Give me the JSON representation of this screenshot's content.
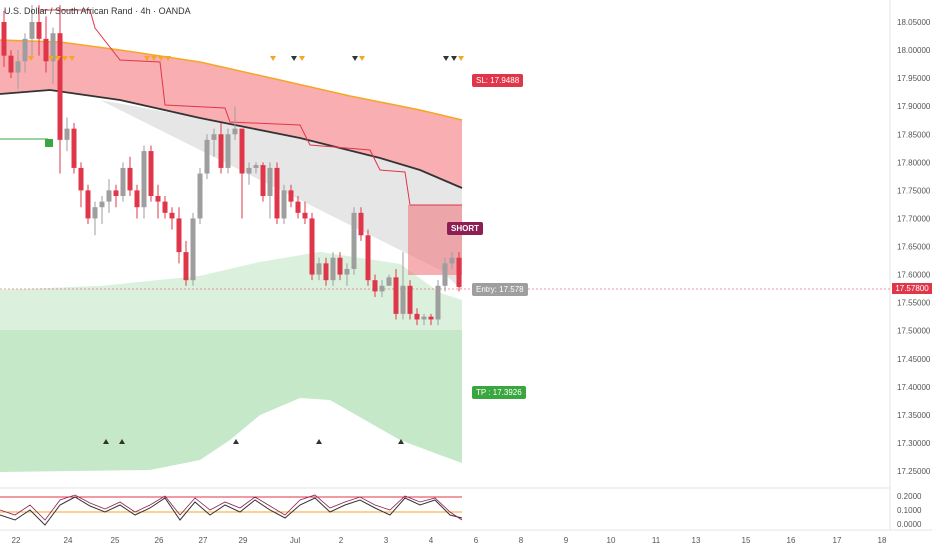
{
  "header": {
    "title": "U.S. Dollar / South African Rand · 4h · OANDA"
  },
  "price_axis": {
    "labels": [
      "18.05000",
      "18.00000",
      "17.95000",
      "17.90000",
      "17.85000",
      "17.80000",
      "17.75000",
      "17.70000",
      "17.65000",
      "17.60000",
      "17.55000",
      "17.50000",
      "17.45000",
      "17.40000",
      "17.35000",
      "17.30000",
      "17.25000"
    ],
    "current_price": "17.57800"
  },
  "oscillator_axis": {
    "labels": [
      "0.2000",
      "0.1000",
      "0.0000"
    ]
  },
  "time_axis": {
    "labels": [
      "22",
      "24",
      "25",
      "26",
      "27",
      "29",
      "Jul",
      "2",
      "3",
      "4",
      "6",
      "8",
      "9",
      "10",
      "11",
      "13",
      "15",
      "16",
      "17",
      "18"
    ]
  },
  "annotations": {
    "stop_loss": "SL: 17.9488",
    "take_profit": "TP : 17.3926",
    "entry": "Entry: 17.578",
    "signal": "SHORT"
  },
  "colors": {
    "bear": "#e0364a",
    "bull": "#9e9e9e",
    "red_zone": "#f8a5a8",
    "green_zone": "#7ccc85",
    "slope_line": "#333333",
    "orange_line": "#f6a623"
  },
  "chart_data": {
    "type": "candlestick",
    "ylim": [
      17.23,
      18.08
    ],
    "ohlc": [
      [
        18.05,
        18.07,
        17.97,
        17.99
      ],
      [
        17.99,
        18.0,
        17.95,
        17.96
      ],
      [
        17.96,
        18.0,
        17.93,
        17.98
      ],
      [
        17.98,
        18.03,
        17.96,
        18.02
      ],
      [
        18.02,
        18.08,
        17.99,
        18.05
      ],
      [
        18.05,
        18.08,
        17.99,
        18.02
      ],
      [
        18.02,
        18.06,
        17.96,
        17.98
      ],
      [
        17.98,
        18.04,
        17.94,
        18.03
      ],
      [
        18.03,
        18.08,
        17.78,
        17.84
      ],
      [
        17.84,
        17.88,
        17.82,
        17.86
      ],
      [
        17.86,
        17.87,
        17.78,
        17.79
      ],
      [
        17.79,
        17.8,
        17.72,
        17.75
      ],
      [
        17.75,
        17.76,
        17.69,
        17.7
      ],
      [
        17.7,
        17.73,
        17.67,
        17.72
      ],
      [
        17.72,
        17.74,
        17.69,
        17.73
      ],
      [
        17.73,
        17.77,
        17.71,
        17.75
      ],
      [
        17.75,
        17.76,
        17.72,
        17.74
      ],
      [
        17.74,
        17.8,
        17.73,
        17.79
      ],
      [
        17.79,
        17.81,
        17.74,
        17.75
      ],
      [
        17.75,
        17.76,
        17.7,
        17.72
      ],
      [
        17.72,
        17.83,
        17.7,
        17.82
      ],
      [
        17.82,
        17.83,
        17.73,
        17.74
      ],
      [
        17.74,
        17.76,
        17.7,
        17.73
      ],
      [
        17.73,
        17.74,
        17.7,
        17.71
      ],
      [
        17.71,
        17.72,
        17.68,
        17.7
      ],
      [
        17.7,
        17.72,
        17.62,
        17.64
      ],
      [
        17.64,
        17.66,
        17.58,
        17.59
      ],
      [
        17.59,
        17.71,
        17.58,
        17.7
      ],
      [
        17.7,
        17.79,
        17.69,
        17.78
      ],
      [
        17.78,
        17.85,
        17.77,
        17.84
      ],
      [
        17.84,
        17.86,
        17.81,
        17.85
      ],
      [
        17.85,
        17.87,
        17.78,
        17.79
      ],
      [
        17.79,
        17.86,
        17.78,
        17.85
      ],
      [
        17.85,
        17.9,
        17.84,
        17.86
      ],
      [
        17.86,
        17.86,
        17.7,
        17.78
      ],
      [
        17.78,
        17.8,
        17.76,
        17.79
      ],
      [
        17.79,
        17.8,
        17.78,
        17.795
      ],
      [
        17.795,
        17.8,
        17.73,
        17.74
      ],
      [
        17.74,
        17.8,
        17.7,
        17.79
      ],
      [
        17.79,
        17.8,
        17.69,
        17.7
      ],
      [
        17.7,
        17.76,
        17.69,
        17.75
      ],
      [
        17.75,
        17.76,
        17.72,
        17.73
      ],
      [
        17.73,
        17.74,
        17.7,
        17.71
      ],
      [
        17.71,
        17.73,
        17.69,
        17.7
      ],
      [
        17.7,
        17.71,
        17.59,
        17.6
      ],
      [
        17.6,
        17.63,
        17.59,
        17.62
      ],
      [
        17.62,
        17.63,
        17.58,
        17.59
      ],
      [
        17.59,
        17.64,
        17.58,
        17.63
      ],
      [
        17.63,
        17.64,
        17.59,
        17.6
      ],
      [
        17.6,
        17.62,
        17.58,
        17.61
      ],
      [
        17.61,
        17.72,
        17.6,
        17.71
      ],
      [
        17.71,
        17.72,
        17.66,
        17.67
      ],
      [
        17.67,
        17.68,
        17.58,
        17.59
      ],
      [
        17.59,
        17.6,
        17.56,
        17.57
      ],
      [
        17.57,
        17.59,
        17.56,
        17.58
      ],
      [
        17.58,
        17.6,
        17.58,
        17.595
      ],
      [
        17.595,
        17.61,
        17.52,
        17.53
      ],
      [
        17.53,
        17.64,
        17.52,
        17.58
      ],
      [
        17.58,
        17.59,
        17.52,
        17.53
      ],
      [
        17.53,
        17.54,
        17.51,
        17.52
      ],
      [
        17.52,
        17.53,
        17.51,
        17.525
      ],
      [
        17.525,
        17.53,
        17.51,
        17.52
      ],
      [
        17.52,
        17.59,
        17.51,
        17.58
      ],
      [
        17.58,
        17.63,
        17.57,
        17.62
      ],
      [
        17.62,
        17.64,
        17.61,
        17.63
      ],
      [
        17.63,
        17.64,
        17.57,
        17.578
      ]
    ],
    "stop_loss": 17.9488,
    "take_profit": 17.3926,
    "entry": 17.578
  }
}
